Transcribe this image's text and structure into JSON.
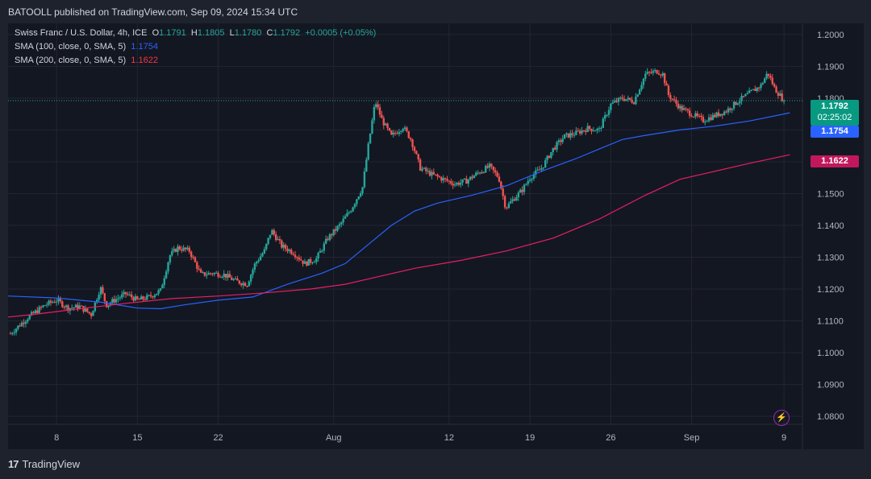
{
  "header": {
    "publisher_text": "BATOOLL published on TradingView.com, Sep 09, 2024 15:34 UTC"
  },
  "legend": {
    "symbol": "Swiss Franc / U.S. Dollar, 4h, ICE",
    "o_key": "O",
    "o": "1.1791",
    "h_key": "H",
    "h": "1.1805",
    "l_key": "L",
    "l": "1.1780",
    "c_key": "C",
    "c": "1.1792",
    "change": "+0.0005 (+0.05%)",
    "sma100_label": "SMA (100, close, 0, SMA, 5)",
    "sma100_value": "1.1754",
    "sma200_label": "SMA (200, close, 0, SMA, 5)",
    "sma200_value": "1.1622"
  },
  "badges": {
    "price": "1.1792",
    "countdown": "02:25:02",
    "sma100": "1.1754",
    "sma200": "1.1622"
  },
  "footer": {
    "brand": "TradingView",
    "mark": "17"
  },
  "icons": {
    "alert": "lightning-alert-icon"
  },
  "colors": {
    "up": "#26a69a",
    "down": "#ef5350",
    "sma100": "#2962ff",
    "sma200": "#e91e63",
    "price_badge": "#089981",
    "background": "#131722"
  },
  "chart_data": {
    "type": "candlestick",
    "timeframe": "4h",
    "y_ticks": [
      "1.2000",
      "1.1900",
      "1.1800",
      "1.1700",
      "1.1600",
      "1.1500",
      "1.1400",
      "1.1300",
      "1.1200",
      "1.1100",
      "1.1000",
      "1.0900",
      "1.0800"
    ],
    "ylim": [
      1.0775,
      1.2035
    ],
    "x_ticks": [
      {
        "label": "8",
        "day": 8
      },
      {
        "label": "15",
        "day": 15
      },
      {
        "label": "22",
        "day": 22
      },
      {
        "label": "Aug",
        "day": 32
      },
      {
        "label": "12",
        "day": 42
      },
      {
        "label": "19",
        "day": 49
      },
      {
        "label": "26",
        "day": 56
      },
      {
        "label": "Sep",
        "day": 63
      },
      {
        "label": "9",
        "day": 71
      }
    ],
    "xlim_days": [
      3.8,
      72.6
    ],
    "last_price": 1.1792,
    "close_path": [
      {
        "day": 4.0,
        "close": 1.106
      },
      {
        "day": 5.5,
        "close": 1.111
      },
      {
        "day": 7.0,
        "close": 1.115
      },
      {
        "day": 8.0,
        "close": 1.1165
      },
      {
        "day": 9.0,
        "close": 1.114
      },
      {
        "day": 10.0,
        "close": 1.1145
      },
      {
        "day": 11.0,
        "close": 1.112
      },
      {
        "day": 11.8,
        "close": 1.1205
      },
      {
        "day": 12.3,
        "close": 1.115
      },
      {
        "day": 13.0,
        "close": 1.1165
      },
      {
        "day": 14.0,
        "close": 1.1185
      },
      {
        "day": 15.0,
        "close": 1.1165
      },
      {
        "day": 16.0,
        "close": 1.1175
      },
      {
        "day": 17.0,
        "close": 1.1195
      },
      {
        "day": 17.8,
        "close": 1.1305
      },
      {
        "day": 18.5,
        "close": 1.133
      },
      {
        "day": 19.5,
        "close": 1.132
      },
      {
        "day": 20.5,
        "close": 1.1245
      },
      {
        "day": 21.5,
        "close": 1.125
      },
      {
        "day": 22.5,
        "close": 1.1245
      },
      {
        "day": 23.5,
        "close": 1.1225
      },
      {
        "day": 24.5,
        "close": 1.1215
      },
      {
        "day": 25.2,
        "close": 1.128
      },
      {
        "day": 26.0,
        "close": 1.132
      },
      {
        "day": 26.6,
        "close": 1.1385
      },
      {
        "day": 27.5,
        "close": 1.1335
      },
      {
        "day": 28.5,
        "close": 1.1315
      },
      {
        "day": 29.5,
        "close": 1.128
      },
      {
        "day": 30.5,
        "close": 1.1295
      },
      {
        "day": 31.5,
        "close": 1.136
      },
      {
        "day": 32.5,
        "close": 1.14
      },
      {
        "day": 33.5,
        "close": 1.145
      },
      {
        "day": 34.5,
        "close": 1.152
      },
      {
        "day": 35.0,
        "close": 1.165
      },
      {
        "day": 35.6,
        "close": 1.179
      },
      {
        "day": 36.2,
        "close": 1.173
      },
      {
        "day": 37.0,
        "close": 1.168
      },
      {
        "day": 38.0,
        "close": 1.171
      },
      {
        "day": 38.7,
        "close": 1.167
      },
      {
        "day": 39.5,
        "close": 1.158
      },
      {
        "day": 40.5,
        "close": 1.156
      },
      {
        "day": 41.5,
        "close": 1.1545
      },
      {
        "day": 42.5,
        "close": 1.153
      },
      {
        "day": 43.5,
        "close": 1.154
      },
      {
        "day": 44.5,
        "close": 1.1565
      },
      {
        "day": 45.5,
        "close": 1.1585
      },
      {
        "day": 46.3,
        "close": 1.155
      },
      {
        "day": 46.9,
        "close": 1.1455
      },
      {
        "day": 47.5,
        "close": 1.148
      },
      {
        "day": 48.3,
        "close": 1.151
      },
      {
        "day": 49.0,
        "close": 1.155
      },
      {
        "day": 50.0,
        "close": 1.158
      },
      {
        "day": 51.0,
        "close": 1.164
      },
      {
        "day": 52.0,
        "close": 1.168
      },
      {
        "day": 53.0,
        "close": 1.169
      },
      {
        "day": 54.0,
        "close": 1.1705
      },
      {
        "day": 55.0,
        "close": 1.17
      },
      {
        "day": 56.0,
        "close": 1.178
      },
      {
        "day": 57.0,
        "close": 1.18
      },
      {
        "day": 58.0,
        "close": 1.179
      },
      {
        "day": 59.0,
        "close": 1.1875
      },
      {
        "day": 60.0,
        "close": 1.1885
      },
      {
        "day": 60.5,
        "close": 1.1875
      },
      {
        "day": 61.0,
        "close": 1.181
      },
      {
        "day": 62.0,
        "close": 1.177
      },
      {
        "day": 63.0,
        "close": 1.175
      },
      {
        "day": 64.0,
        "close": 1.173
      },
      {
        "day": 65.0,
        "close": 1.1745
      },
      {
        "day": 66.0,
        "close": 1.176
      },
      {
        "day": 67.0,
        "close": 1.179
      },
      {
        "day": 68.0,
        "close": 1.1815
      },
      {
        "day": 69.0,
        "close": 1.184
      },
      {
        "day": 69.6,
        "close": 1.188
      },
      {
        "day": 70.2,
        "close": 1.183
      },
      {
        "day": 71.0,
        "close": 1.1792
      }
    ],
    "series": [
      {
        "name": "SMA (100, close, 0, SMA, 5)",
        "color": "#2962ff",
        "points": [
          {
            "day": 3.8,
            "value": 1.1178
          },
          {
            "day": 8.0,
            "value": 1.1172
          },
          {
            "day": 12.0,
            "value": 1.1158
          },
          {
            "day": 15.0,
            "value": 1.114
          },
          {
            "day": 17.0,
            "value": 1.1138
          },
          {
            "day": 19.0,
            "value": 1.115
          },
          {
            "day": 22.0,
            "value": 1.1165
          },
          {
            "day": 25.0,
            "value": 1.1175
          },
          {
            "day": 28.0,
            "value": 1.1215
          },
          {
            "day": 31.0,
            "value": 1.125
          },
          {
            "day": 33.0,
            "value": 1.128
          },
          {
            "day": 35.0,
            "value": 1.134
          },
          {
            "day": 37.0,
            "value": 1.14
          },
          {
            "day": 39.0,
            "value": 1.1445
          },
          {
            "day": 41.0,
            "value": 1.147
          },
          {
            "day": 44.0,
            "value": 1.1495
          },
          {
            "day": 47.0,
            "value": 1.1525
          },
          {
            "day": 50.0,
            "value": 1.157
          },
          {
            "day": 53.0,
            "value": 1.161
          },
          {
            "day": 55.0,
            "value": 1.164
          },
          {
            "day": 57.0,
            "value": 1.167
          },
          {
            "day": 59.0,
            "value": 1.1683
          },
          {
            "day": 62.0,
            "value": 1.17
          },
          {
            "day": 65.0,
            "value": 1.1712
          },
          {
            "day": 68.0,
            "value": 1.1728
          },
          {
            "day": 71.5,
            "value": 1.1754
          }
        ]
      },
      {
        "name": "SMA (200, close, 0, SMA, 5)",
        "color": "#e91e63",
        "points": [
          {
            "day": 3.8,
            "value": 1.1112
          },
          {
            "day": 6.0,
            "value": 1.112
          },
          {
            "day": 10.0,
            "value": 1.1138
          },
          {
            "day": 14.0,
            "value": 1.1155
          },
          {
            "day": 18.0,
            "value": 1.117
          },
          {
            "day": 22.0,
            "value": 1.1178
          },
          {
            "day": 26.0,
            "value": 1.1188
          },
          {
            "day": 30.0,
            "value": 1.12
          },
          {
            "day": 33.0,
            "value": 1.1215
          },
          {
            "day": 36.0,
            "value": 1.124
          },
          {
            "day": 39.0,
            "value": 1.1265
          },
          {
            "day": 43.0,
            "value": 1.129
          },
          {
            "day": 47.0,
            "value": 1.132
          },
          {
            "day": 51.0,
            "value": 1.136
          },
          {
            "day": 55.0,
            "value": 1.142
          },
          {
            "day": 59.0,
            "value": 1.1495
          },
          {
            "day": 62.0,
            "value": 1.1545
          },
          {
            "day": 65.0,
            "value": 1.157
          },
          {
            "day": 68.0,
            "value": 1.1595
          },
          {
            "day": 71.5,
            "value": 1.1622
          }
        ]
      }
    ]
  }
}
